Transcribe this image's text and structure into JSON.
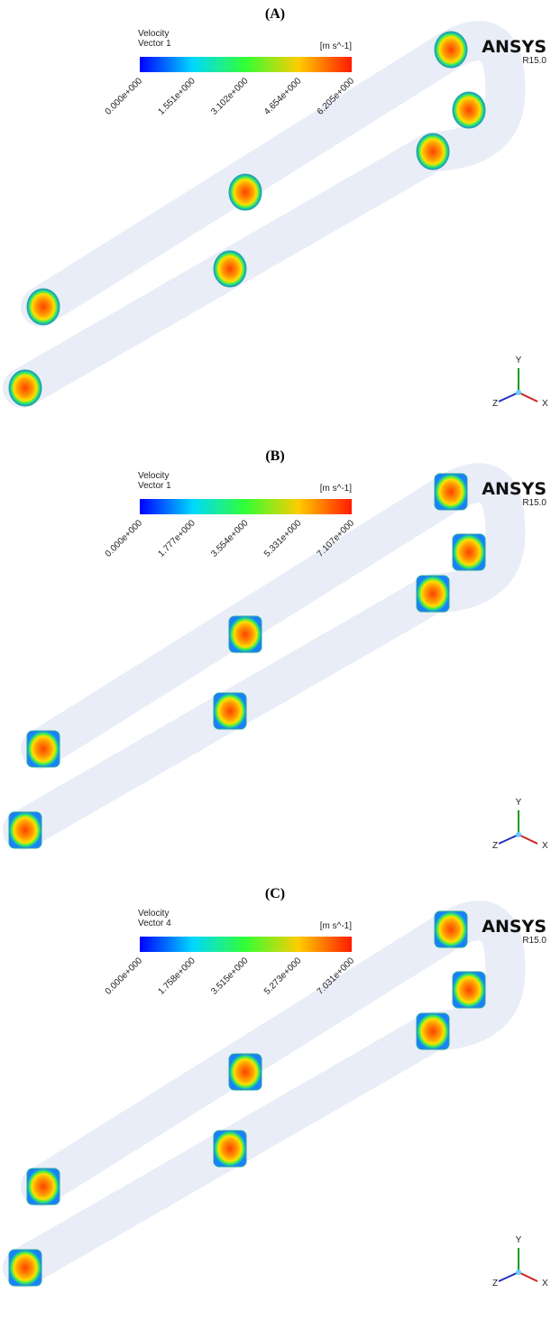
{
  "panels": [
    {
      "label": "(A)",
      "quantity": "Velocity",
      "variable": "Vector 1",
      "unit": "[m s^-1]",
      "colorbar_labels": [
        "0.000e+000",
        "1.551e+000",
        "3.102e+000",
        "4.654e+000",
        "6.205e+000"
      ],
      "brand": "ANSYS",
      "version": "R15.0",
      "axes": [
        "Y",
        "Z",
        "X"
      ]
    },
    {
      "label": "(B)",
      "quantity": "Velocity",
      "variable": "Vector 1",
      "unit": "[m s^-1]",
      "colorbar_labels": [
        "0.000e+000",
        "1.777e+000",
        "3.554e+000",
        "5.331e+000",
        "7.107e+000"
      ],
      "brand": "ANSYS",
      "version": "R15.0",
      "axes": [
        "Y",
        "Z",
        "X"
      ]
    },
    {
      "label": "(C)",
      "quantity": "Velocity",
      "variable": "Vector 4",
      "unit": "[m s^-1]",
      "colorbar_labels": [
        "0.000e+000",
        "1.758e+000",
        "3.515e+000",
        "5.273e+000",
        "7.031e+000"
      ],
      "brand": "ANSYS",
      "version": "R15.0",
      "axes": [
        "Y",
        "Z",
        "X"
      ]
    }
  ]
}
